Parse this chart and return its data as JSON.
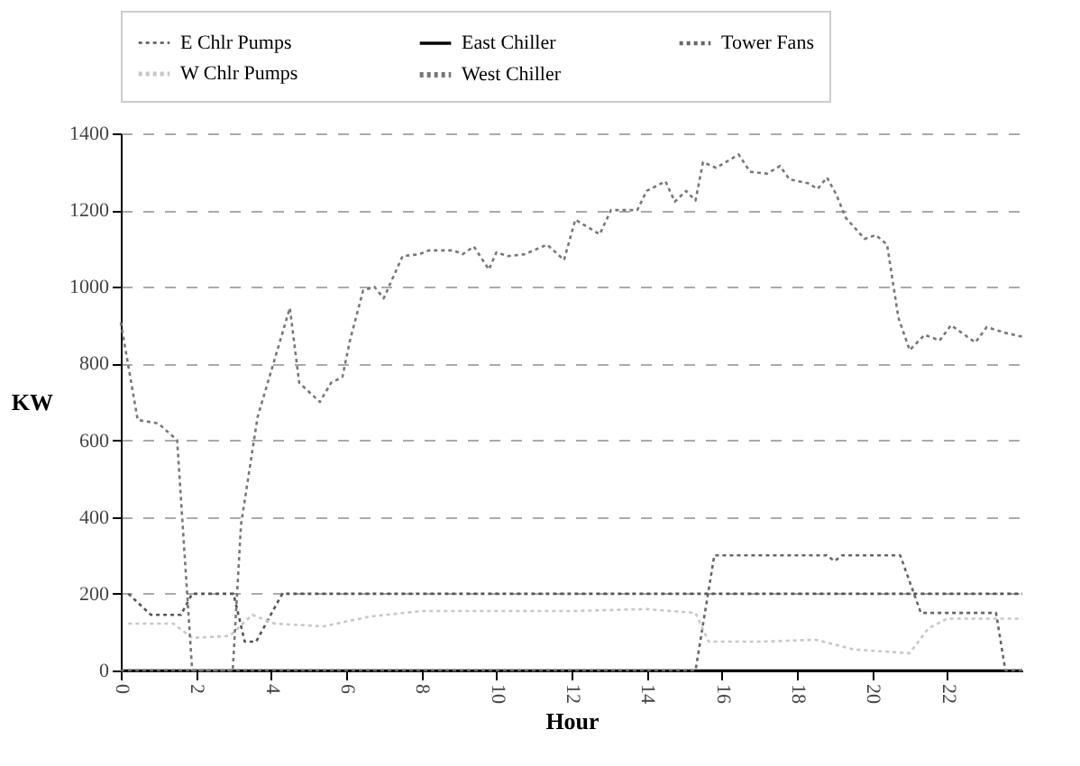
{
  "chart_data": {
    "type": "line",
    "xlabel": "Hour",
    "ylabel": "KW",
    "xlim": [
      0,
      24
    ],
    "xticks": [
      0,
      2,
      4,
      6,
      8,
      10,
      12,
      14,
      16,
      18,
      20,
      22
    ],
    "ylim": [
      0,
      1400
    ],
    "yticks": [
      0,
      200,
      400,
      600,
      800,
      1000,
      1200,
      1400
    ],
    "grid": "y",
    "legend": "top",
    "series": [
      {
        "name": "E Chlr Pumps",
        "color": "#555555",
        "line_style": "dotted",
        "x": [
          0.2,
          0.8,
          1.6,
          1.9,
          3.0,
          3.3,
          3.6,
          4.3,
          24
        ],
        "values": [
          200,
          145,
          145,
          200,
          200,
          75,
          75,
          200,
          200
        ]
      },
      {
        "name": "East Chiller",
        "color": "#000000",
        "line_style": "solid",
        "x": [
          0,
          24
        ],
        "values": [
          0,
          0
        ]
      },
      {
        "name": "Tower Fans",
        "color": "#666666",
        "line_style": "dotted",
        "x": [
          0,
          15.3,
          15.8,
          18.8,
          19.0,
          19.2,
          20.75,
          21.3,
          23.3,
          23.55,
          24
        ],
        "values": [
          0,
          0,
          300,
          300,
          285,
          300,
          300,
          150,
          150,
          0,
          0
        ]
      },
      {
        "name": "W Chlr Pumps",
        "color": "#c8c8c8",
        "line_style": "dotted",
        "x": [
          0.2,
          1.4,
          1.9,
          2.9,
          3.5,
          4.1,
          5.4,
          6.6,
          8,
          10,
          12,
          14,
          15.3,
          15.65,
          17,
          18.5,
          19.5,
          21,
          21.5,
          22,
          24
        ],
        "values": [
          122,
          122,
          85,
          90,
          145,
          122,
          115,
          140,
          155,
          155,
          155,
          160,
          150,
          75,
          75,
          80,
          55,
          45,
          110,
          135,
          135
        ]
      },
      {
        "name": "West Chiller",
        "color": "#777777",
        "line_style": "dotted",
        "x": [
          0,
          0.45,
          1.0,
          1.5,
          1.9,
          2.98,
          3.2,
          3.64,
          4.5,
          4.75,
          5.3,
          5.6,
          5.9,
          6.1,
          6.45,
          6.75,
          7.0,
          7.5,
          7.95,
          8.2,
          8.85,
          9.1,
          9.4,
          9.8,
          10.0,
          10.3,
          10.75,
          11.35,
          11.8,
          12.1,
          12.75,
          13.05,
          13.75,
          14.0,
          14.5,
          14.75,
          15.05,
          15.3,
          15.5,
          15.85,
          16.45,
          16.75,
          17.2,
          17.55,
          17.8,
          18.3,
          18.55,
          18.8,
          19.05,
          19.3,
          19.8,
          20.1,
          20.4,
          20.7,
          21.0,
          21.4,
          21.8,
          22.1,
          22.75,
          23.05,
          23.55,
          24
        ],
        "values": [
          907,
          653,
          644,
          600,
          0,
          0,
          380,
          660,
          945,
          750,
          700,
          750,
          765,
          860,
          990,
          1000,
          970,
          1080,
          1085,
          1095,
          1095,
          1085,
          1105,
          1045,
          1090,
          1080,
          1085,
          1110,
          1070,
          1175,
          1137,
          1200,
          1200,
          1250,
          1275,
          1222,
          1250,
          1225,
          1325,
          1310,
          1345,
          1300,
          1295,
          1315,
          1280,
          1270,
          1255,
          1285,
          1240,
          1180,
          1125,
          1135,
          1110,
          920,
          835,
          875,
          860,
          900,
          855,
          895,
          880,
          870
        ]
      }
    ]
  }
}
